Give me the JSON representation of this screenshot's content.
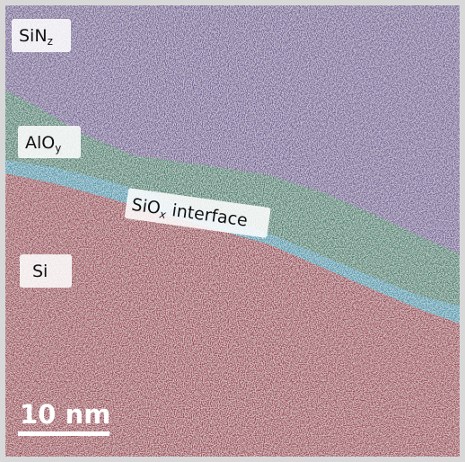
{
  "image": {
    "labels": [
      {
        "text": "SiN",
        "sub": "z"
      },
      {
        "text": "AlO",
        "sub": "y"
      },
      {
        "text": "SiO",
        "sub": "x",
        "suffix": " interface"
      },
      {
        "text": "Si"
      }
    ],
    "scale_bar": "10 nm"
  }
}
